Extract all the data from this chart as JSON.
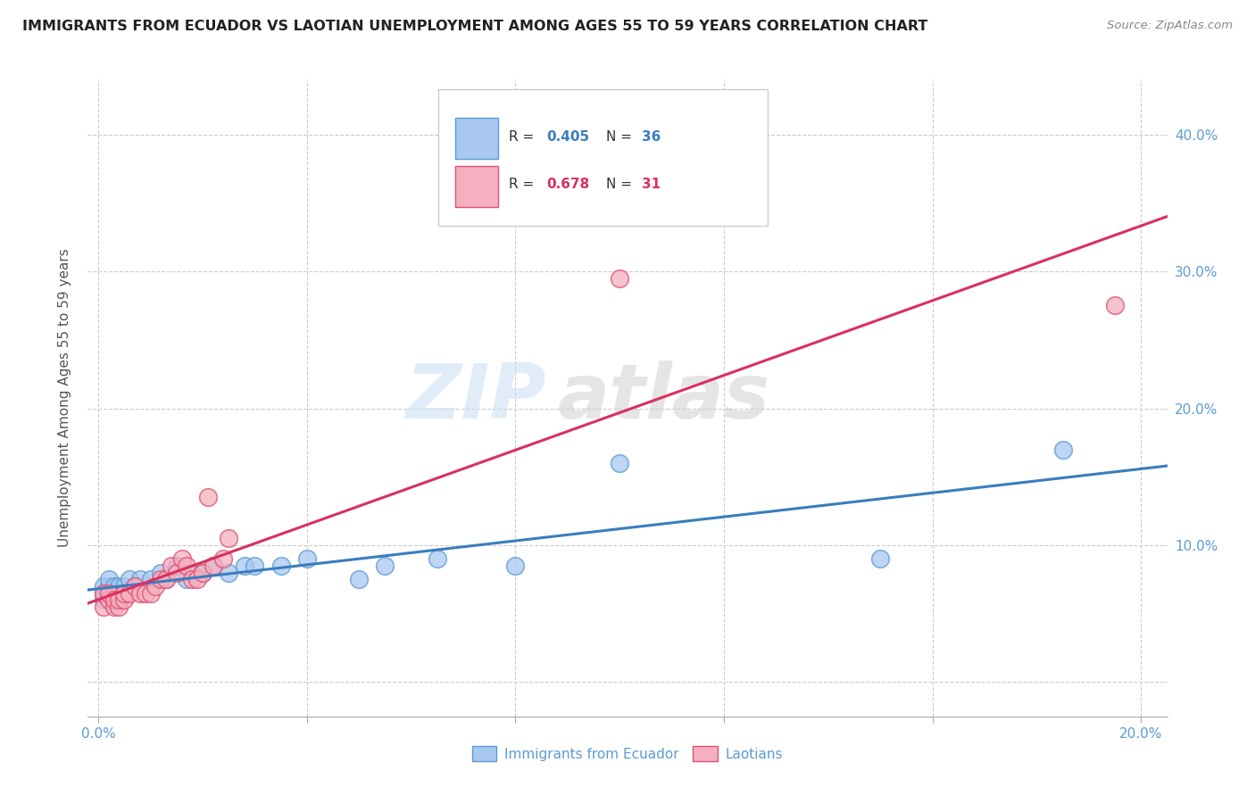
{
  "title": "IMMIGRANTS FROM ECUADOR VS LAOTIAN UNEMPLOYMENT AMONG AGES 55 TO 59 YEARS CORRELATION CHART",
  "source": "Source: ZipAtlas.com",
  "ylabel_label": "Unemployment Among Ages 55 to 59 years",
  "xlim": [
    -0.002,
    0.205
  ],
  "ylim": [
    -0.025,
    0.44
  ],
  "ecuador_color": "#a8c8f0",
  "ecuador_edge": "#5b9bd5",
  "laotian_color": "#f4b0c0",
  "laotian_edge": "#e05070",
  "ecuador_line_color": "#3a7dbf",
  "laotian_line_color": "#d93060",
  "legend_ecuador_R": "0.405",
  "legend_ecuador_N": "36",
  "legend_laotian_R": "0.678",
  "legend_laotian_N": "31",
  "watermark_zip": "ZIP",
  "watermark_atlas": "atlas",
  "ecuador_scatter_x": [
    0.001,
    0.001,
    0.001,
    0.002,
    0.002,
    0.002,
    0.003,
    0.003,
    0.003,
    0.004,
    0.004,
    0.005,
    0.005,
    0.006,
    0.007,
    0.008,
    0.01,
    0.012,
    0.013,
    0.015,
    0.017,
    0.018,
    0.02,
    0.022,
    0.025,
    0.028,
    0.03,
    0.035,
    0.04,
    0.05,
    0.055,
    0.065,
    0.08,
    0.1,
    0.15,
    0.185
  ],
  "ecuador_scatter_y": [
    0.06,
    0.065,
    0.07,
    0.065,
    0.07,
    0.075,
    0.06,
    0.065,
    0.07,
    0.065,
    0.07,
    0.065,
    0.07,
    0.075,
    0.07,
    0.075,
    0.075,
    0.08,
    0.075,
    0.085,
    0.075,
    0.08,
    0.08,
    0.085,
    0.08,
    0.085,
    0.085,
    0.085,
    0.09,
    0.075,
    0.085,
    0.09,
    0.085,
    0.16,
    0.09,
    0.17
  ],
  "laotian_scatter_x": [
    0.001,
    0.001,
    0.002,
    0.002,
    0.003,
    0.003,
    0.004,
    0.004,
    0.005,
    0.005,
    0.006,
    0.007,
    0.008,
    0.009,
    0.01,
    0.011,
    0.012,
    0.013,
    0.014,
    0.015,
    0.016,
    0.017,
    0.018,
    0.019,
    0.02,
    0.021,
    0.022,
    0.024,
    0.025,
    0.1,
    0.195
  ],
  "laotian_scatter_y": [
    0.055,
    0.065,
    0.06,
    0.065,
    0.055,
    0.06,
    0.055,
    0.06,
    0.06,
    0.065,
    0.065,
    0.07,
    0.065,
    0.065,
    0.065,
    0.07,
    0.075,
    0.075,
    0.085,
    0.08,
    0.09,
    0.085,
    0.075,
    0.075,
    0.08,
    0.135,
    0.085,
    0.09,
    0.105,
    0.295,
    0.275
  ],
  "x_tick_positions": [
    0.0,
    0.04,
    0.08,
    0.12,
    0.16,
    0.2
  ],
  "x_tick_labels": [
    "0.0%",
    "",
    "",
    "",
    "",
    "20.0%"
  ],
  "y_tick_positions": [
    0.0,
    0.1,
    0.2,
    0.3,
    0.4
  ],
  "y_tick_labels_right": [
    "",
    "10.0%",
    "20.0%",
    "30.0%",
    "40.0%"
  ]
}
